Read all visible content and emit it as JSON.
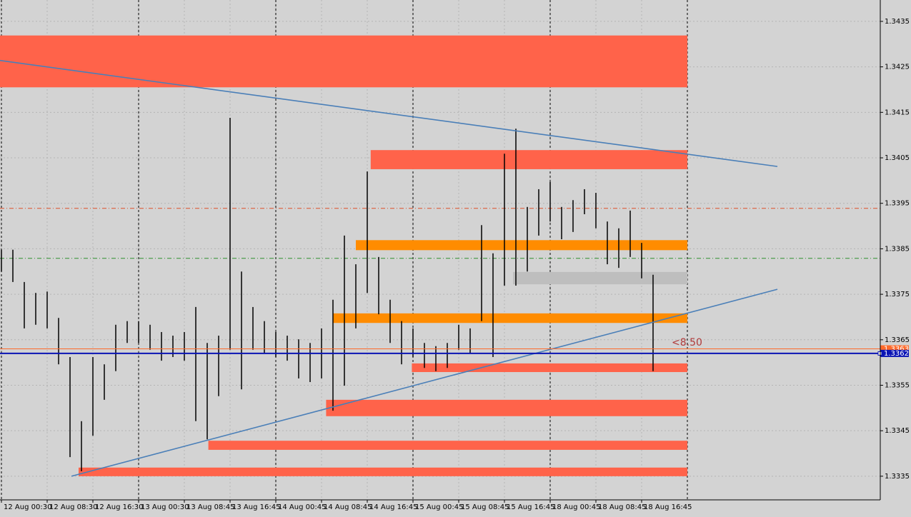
{
  "chart_data": {
    "type": "ohlc",
    "ylim": [
      1.33298,
      1.34397
    ],
    "xlim": [
      -0.125,
      76.875
    ],
    "yticks": [
      1.3335,
      1.3345,
      1.3355,
      1.3365,
      1.3375,
      1.3385,
      1.3395,
      1.3405,
      1.3415,
      1.3425,
      1.3435
    ],
    "xticks": [
      {
        "value": 0,
        "label": "12 Aug 00:30"
      },
      {
        "value": 4,
        "label": "12 Aug 08:30"
      },
      {
        "value": 8,
        "label": "12 Aug 16:30"
      },
      {
        "value": 12,
        "label": "13 Aug 00:30"
      },
      {
        "value": 16,
        "label": "13 Aug 08:45"
      },
      {
        "value": 20,
        "label": "13 Aug 16:45"
      },
      {
        "value": 24,
        "label": "14 Aug 00:45"
      },
      {
        "value": 28,
        "label": "14 Aug 08:45"
      },
      {
        "value": 32,
        "label": "14 Aug 16:45"
      },
      {
        "value": 36,
        "label": "15 Aug 00:45"
      },
      {
        "value": 40,
        "label": "15 Aug 08:45"
      },
      {
        "value": 44,
        "label": "15 Aug 16:45"
      },
      {
        "value": 48,
        "label": "18 Aug 00:45"
      },
      {
        "value": 52,
        "label": "18 Aug 08:45"
      },
      {
        "value": 56,
        "label": "18 Aug 16:45"
      }
    ],
    "xgrid": [
      0,
      12,
      24,
      36,
      48,
      60
    ],
    "grid": true,
    "bar_color": "#000000",
    "high": [
      1.33848,
      1.33848,
      1.33777,
      1.33753,
      1.33756,
      1.33698,
      1.33612,
      1.33471,
      1.33612,
      1.33596,
      1.33683,
      1.33691,
      1.33691,
      1.33683,
      1.33667,
      1.33659,
      1.33667,
      1.33722,
      1.33643,
      1.33659,
      1.34138,
      1.338,
      1.33722,
      1.33691,
      1.33667,
      1.33659,
      1.33651,
      1.33643,
      1.33675,
      1.33738,
      1.33879,
      1.33816,
      1.3402,
      1.33832,
      1.33738,
      1.33691,
      1.33675,
      1.33643,
      1.33636,
      1.33643,
      1.33683,
      1.33675,
      1.33902,
      1.3384,
      1.34059,
      1.34114,
      1.33942,
      1.33981,
      1.33997,
      1.33942,
      1.33957,
      1.33981,
      1.33973,
      1.3391,
      1.33895,
      1.33934,
      1.33863,
      1.33793
    ],
    "low": [
      1.338,
      1.33777,
      1.33675,
      1.33683,
      1.33675,
      1.33596,
      1.33392,
      1.33361,
      1.33439,
      1.33518,
      1.33581,
      1.33643,
      1.33643,
      1.33628,
      1.33604,
      1.33612,
      1.33604,
      1.33471,
      1.33431,
      1.33526,
      1.33628,
      1.33541,
      1.33628,
      1.3362,
      1.33612,
      1.33604,
      1.33565,
      1.33557,
      1.33565,
      1.33494,
      1.33549,
      1.33675,
      1.33753,
      1.33706,
      1.33643,
      1.33596,
      1.33612,
      1.33588,
      1.33581,
      1.33588,
      1.33628,
      1.3362,
      1.33691,
      1.33612,
      1.33769,
      1.33769,
      1.338,
      1.33879,
      1.3391,
      1.33871,
      1.33887,
      1.33926,
      1.33895,
      1.33816,
      1.33808,
      1.33832,
      1.33785,
      1.33581
    ],
    "zones": [
      {
        "x": [
          -0.125,
          60
        ],
        "y": [
          1.34205,
          1.34319
        ],
        "color": "#ff634a"
      },
      {
        "x": [
          32.3,
          60
        ],
        "y": [
          1.34025,
          1.34067
        ],
        "color": "#ff634a"
      },
      {
        "x": [
          31,
          60
        ],
        "y": [
          1.33847,
          1.33869
        ],
        "color": "#ff8c00"
      },
      {
        "x": [
          44.75,
          60
        ],
        "y": [
          1.33772,
          1.33799
        ],
        "color": "#bebebe"
      },
      {
        "x": [
          29,
          60
        ],
        "y": [
          1.33687,
          1.33708
        ],
        "color": "#ff8c00"
      },
      {
        "x": [
          35.9,
          60
        ],
        "y": [
          1.33579,
          1.33598
        ],
        "color": "#ff634a"
      },
      {
        "x": [
          28.4,
          60
        ],
        "y": [
          1.33482,
          1.33518
        ],
        "color": "#ff634a"
      },
      {
        "x": [
          18.1,
          60
        ],
        "y": [
          1.33408,
          1.33428
        ],
        "color": "#ff634a"
      },
      {
        "x": [
          6.75,
          60
        ],
        "y": [
          1.3335,
          1.33369
        ],
        "color": "#ff634a"
      }
    ],
    "trendlines": [
      {
        "x": [
          -0.125,
          67.875
        ],
        "y": [
          1.34264,
          1.34031
        ],
        "color": "#4a7fb8"
      },
      {
        "x": [
          6.125,
          67.875
        ],
        "y": [
          1.3335,
          1.33761
        ],
        "color": "#4a7fb8"
      }
    ],
    "levels": [
      {
        "value": 1.33939,
        "color": "#e0502a"
      },
      {
        "value": 1.33829,
        "color": "#2f8f2f"
      }
    ],
    "price_labels": [
      {
        "value": 1.3363,
        "color": "#ff6a2b"
      },
      {
        "value": 1.3362,
        "color": "#0a14b4"
      }
    ],
    "annotation": {
      "text": "<8.50",
      "color": "#b03a3a"
    }
  }
}
